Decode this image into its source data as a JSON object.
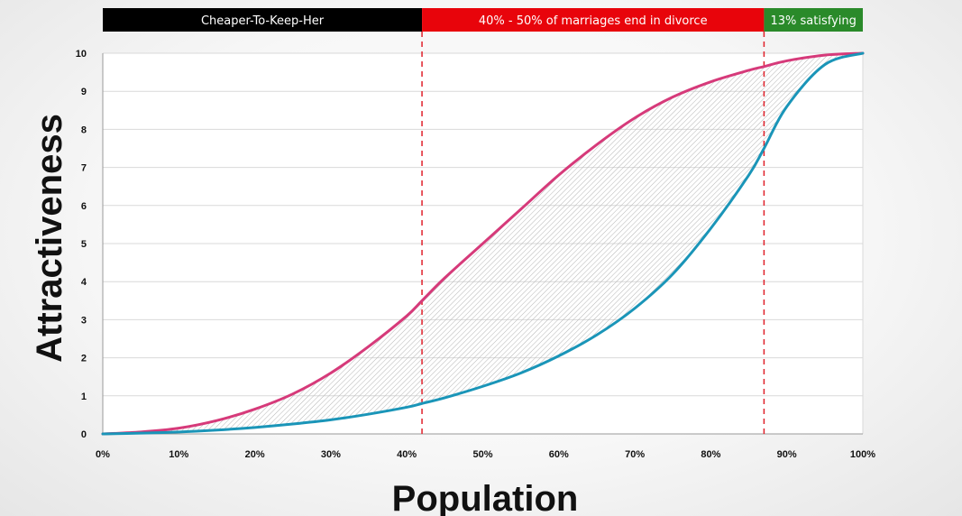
{
  "chart_data": {
    "type": "line",
    "xlabel": "Population",
    "ylabel": "Attractiveness",
    "xlim": [
      0,
      100
    ],
    "ylim": [
      0,
      10
    ],
    "x_ticks": [
      "0%",
      "10%",
      "20%",
      "30%",
      "40%",
      "50%",
      "60%",
      "70%",
      "80%",
      "90%",
      "100%"
    ],
    "y_ticks": [
      "0",
      "1",
      "2",
      "3",
      "4",
      "5",
      "6",
      "7",
      "8",
      "9",
      "10"
    ],
    "grid": true,
    "series": [
      {
        "color": "#d63a7a",
        "x": [
          0,
          5,
          10,
          15,
          20,
          25,
          30,
          35,
          40,
          42,
          45,
          50,
          55,
          60,
          65,
          70,
          75,
          80,
          85,
          87,
          90,
          95,
          100
        ],
        "y": [
          0,
          0.05,
          0.15,
          0.35,
          0.65,
          1.05,
          1.6,
          2.3,
          3.1,
          3.5,
          4.1,
          5.0,
          5.9,
          6.8,
          7.6,
          8.3,
          8.85,
          9.25,
          9.55,
          9.65,
          9.8,
          9.95,
          10
        ]
      },
      {
        "color": "#1a95b8",
        "x": [
          0,
          5,
          10,
          15,
          20,
          25,
          30,
          35,
          40,
          42,
          45,
          50,
          55,
          60,
          65,
          70,
          75,
          80,
          85,
          87,
          90,
          95,
          100
        ],
        "y": [
          0,
          0.02,
          0.05,
          0.1,
          0.17,
          0.26,
          0.37,
          0.52,
          0.7,
          0.8,
          0.95,
          1.25,
          1.6,
          2.05,
          2.6,
          3.3,
          4.2,
          5.4,
          6.8,
          7.5,
          8.6,
          9.7,
          10
        ]
      }
    ],
    "dividers": [
      42,
      87
    ],
    "bands": [
      {
        "label": "Cheaper-To-Keep-Her",
        "from": 0,
        "to": 42,
        "color": "#000000"
      },
      {
        "label": "40% - 50% of marriages end in divorce",
        "from": 42,
        "to": 87,
        "color": "#e8040b"
      },
      {
        "label": "13% satisfying",
        "from": 87,
        "to": 100,
        "color": "#2a8a2a"
      }
    ]
  }
}
